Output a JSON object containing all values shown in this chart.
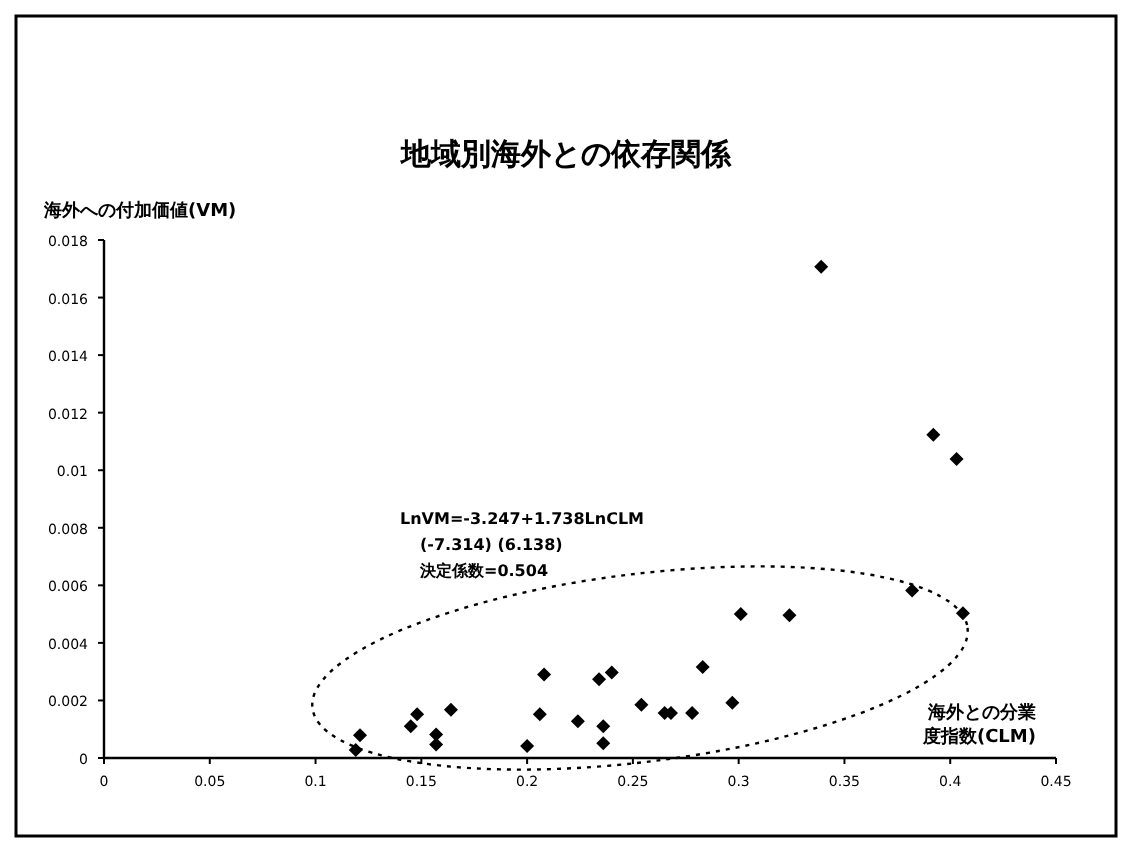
{
  "chart_data": {
    "type": "scatter",
    "title": "地域別海外との依存関係",
    "ylabel": "海外への付加価値(VM)",
    "xlabel": "海外との分業度指数(CLM)",
    "annotations": [
      "LnVM=-3.247+1.738LnCLM",
      "(-7.314)  (6.138)",
      "決定係数=0.504"
    ],
    "x": [
      0.121,
      0.119,
      0.145,
      0.148,
      0.157,
      0.157,
      0.164,
      0.2,
      0.206,
      0.208,
      0.224,
      0.234,
      0.236,
      0.236,
      0.24,
      0.254,
      0.265,
      0.268,
      0.278,
      0.283,
      0.297,
      0.301,
      0.324,
      0.382,
      0.406,
      0.392,
      0.403,
      0.339
    ],
    "values": [
      0.00079,
      0.00028,
      0.0011,
      0.00152,
      0.00082,
      0.00047,
      0.00168,
      0.00042,
      0.00152,
      0.0029,
      0.00128,
      0.00274,
      0.00051,
      0.0011,
      0.00297,
      0.00185,
      0.00156,
      0.00156,
      0.00156,
      0.00316,
      0.00192,
      0.005,
      0.00496,
      0.00582,
      0.00503,
      0.01123,
      0.01039,
      0.01707
    ],
    "color": "#000000",
    "marker": "diamond",
    "xlim": [
      0,
      0.45
    ],
    "xticks": [
      0,
      0.05,
      0.1,
      0.15,
      0.2,
      0.25,
      0.3,
      0.35,
      0.4,
      0.45
    ],
    "ylim": [
      0,
      0.018
    ],
    "yticks": [
      0,
      0.002,
      0.004,
      0.006,
      0.008,
      0.01,
      0.012,
      0.014,
      0.016,
      0.018
    ]
  }
}
